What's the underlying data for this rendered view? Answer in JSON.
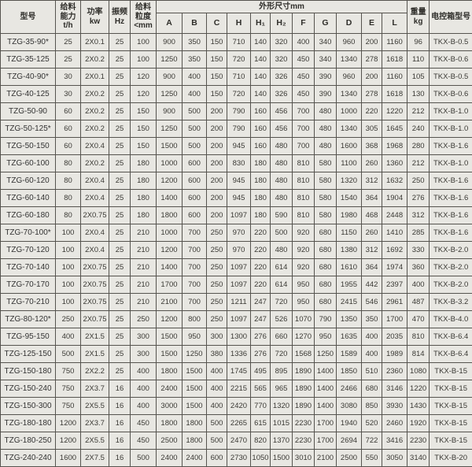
{
  "table": {
    "headers": {
      "model": "型号",
      "capacity": "给料\n能力\nt/h",
      "power": "功率\nkw",
      "frequency": "振频\nHz",
      "granularity": "给料\n粒度\n<mm",
      "dimensions_group": "外形尺寸mm",
      "weight": "重量\nkg",
      "control_box": "电控箱型号"
    },
    "dim_cols": [
      "A",
      "B",
      "C",
      "H",
      "H₁",
      "H₂",
      "F",
      "G",
      "D",
      "E",
      "L"
    ],
    "rows": [
      [
        "TZG-35-90*",
        "25",
        "2X0.1",
        "25",
        "100",
        "900",
        "350",
        "150",
        "710",
        "140",
        "320",
        "400",
        "340",
        "960",
        "200",
        "1160",
        "96",
        "TKX-B-0.5"
      ],
      [
        "TZG-35-125",
        "25",
        "2X0.2",
        "25",
        "100",
        "1250",
        "350",
        "150",
        "720",
        "140",
        "320",
        "450",
        "340",
        "1340",
        "278",
        "1618",
        "110",
        "TKX-B-0.6"
      ],
      [
        "TZG-40-90*",
        "30",
        "2X0.1",
        "25",
        "120",
        "900",
        "400",
        "150",
        "710",
        "140",
        "326",
        "450",
        "390",
        "960",
        "200",
        "1160",
        "105",
        "TKX-B-0.5"
      ],
      [
        "TZG-40-125",
        "30",
        "2X0.2",
        "25",
        "120",
        "1250",
        "400",
        "150",
        "720",
        "140",
        "326",
        "450",
        "390",
        "1340",
        "278",
        "1618",
        "130",
        "TKX-B-0.6"
      ],
      [
        "TZG-50-90",
        "60",
        "2X0.2",
        "25",
        "150",
        "900",
        "500",
        "200",
        "790",
        "160",
        "456",
        "700",
        "480",
        "1000",
        "220",
        "1220",
        "212",
        "TKX-B-1.0"
      ],
      [
        "TZG-50-125*",
        "60",
        "2X0.2",
        "25",
        "150",
        "1250",
        "500",
        "200",
        "790",
        "160",
        "456",
        "700",
        "480",
        "1340",
        "305",
        "1645",
        "240",
        "TKX-B-1.0"
      ],
      [
        "TZG-50-150",
        "60",
        "2X0.4",
        "25",
        "150",
        "1500",
        "500",
        "200",
        "945",
        "160",
        "480",
        "700",
        "480",
        "1600",
        "368",
        "1968",
        "280",
        "TKX-B-1.6"
      ],
      [
        "TZG-60-100",
        "80",
        "2X0.2",
        "25",
        "180",
        "1000",
        "600",
        "200",
        "830",
        "180",
        "480",
        "810",
        "580",
        "1100",
        "260",
        "1360",
        "212",
        "TKX-B-1.0"
      ],
      [
        "TZG-60-120",
        "80",
        "2X0.4",
        "25",
        "180",
        "1200",
        "600",
        "200",
        "945",
        "180",
        "480",
        "810",
        "580",
        "1320",
        "312",
        "1632",
        "250",
        "TKX-B-1.6"
      ],
      [
        "TZG-60-140",
        "80",
        "2X0.4",
        "25",
        "180",
        "1400",
        "600",
        "200",
        "945",
        "180",
        "480",
        "810",
        "580",
        "1540",
        "364",
        "1904",
        "276",
        "TKX-B-1.6"
      ],
      [
        "TZG-60-180",
        "80",
        "2X0.75",
        "25",
        "180",
        "1800",
        "600",
        "200",
        "1097",
        "180",
        "590",
        "810",
        "580",
        "1980",
        "468",
        "2448",
        "312",
        "TKX-B-1.6"
      ],
      [
        "TZG-70-100*",
        "100",
        "2X0.4",
        "25",
        "210",
        "1000",
        "700",
        "250",
        "970",
        "220",
        "500",
        "920",
        "680",
        "1150",
        "260",
        "1410",
        "285",
        "TKX-B-1.6"
      ],
      [
        "TZG-70-120",
        "100",
        "2X0.4",
        "25",
        "210",
        "1200",
        "700",
        "250",
        "970",
        "220",
        "480",
        "920",
        "680",
        "1380",
        "312",
        "1692",
        "330",
        "TKX-B-2.0"
      ],
      [
        "TZG-70-140",
        "100",
        "2X0.75",
        "25",
        "210",
        "1400",
        "700",
        "250",
        "1097",
        "220",
        "614",
        "920",
        "680",
        "1610",
        "364",
        "1974",
        "360",
        "TKX-B-2.0"
      ],
      [
        "TZG-70-170",
        "100",
        "2X0.75",
        "25",
        "210",
        "1700",
        "700",
        "250",
        "1097",
        "220",
        "614",
        "950",
        "680",
        "1955",
        "442",
        "2397",
        "400",
        "TKX-B-2.0"
      ],
      [
        "TZG-70-210",
        "100",
        "2X0.75",
        "25",
        "210",
        "2100",
        "700",
        "250",
        "1211",
        "247",
        "720",
        "950",
        "680",
        "2415",
        "546",
        "2961",
        "487",
        "TKX-B-3.2"
      ],
      [
        "TZG-80-120*",
        "250",
        "2X0.75",
        "25",
        "250",
        "1200",
        "800",
        "250",
        "1097",
        "247",
        "526",
        "1070",
        "790",
        "1350",
        "350",
        "1700",
        "470",
        "TKX-B-4.0"
      ],
      [
        "TZG-95-150",
        "400",
        "2X1.5",
        "25",
        "300",
        "1500",
        "950",
        "300",
        "1300",
        "276",
        "660",
        "1270",
        "950",
        "1635",
        "400",
        "2035",
        "810",
        "TKX-B-6.4"
      ],
      [
        "TZG-125-150",
        "500",
        "2X1.5",
        "25",
        "300",
        "1500",
        "1250",
        "380",
        "1336",
        "276",
        "720",
        "1568",
        "1250",
        "1589",
        "400",
        "1989",
        "814",
        "TKX-B-6.4"
      ],
      [
        "TZG-150-180",
        "750",
        "2X2.2",
        "25",
        "400",
        "1800",
        "1500",
        "400",
        "1745",
        "495",
        "895",
        "1890",
        "1400",
        "1850",
        "510",
        "2360",
        "1080",
        "TKX-B-15"
      ],
      [
        "TZG-150-240",
        "750",
        "2X3.7",
        "16",
        "400",
        "2400",
        "1500",
        "400",
        "2215",
        "565",
        "965",
        "1890",
        "1400",
        "2466",
        "680",
        "3146",
        "1220",
        "TKX-B-15"
      ],
      [
        "TZG-150-300",
        "750",
        "2X5.5",
        "16",
        "400",
        "3000",
        "1500",
        "400",
        "2420",
        "770",
        "1320",
        "1890",
        "1400",
        "3080",
        "850",
        "3930",
        "1430",
        "TKX-B-15"
      ],
      [
        "TZG-180-180",
        "1200",
        "2X3.7",
        "16",
        "450",
        "1800",
        "1800",
        "500",
        "2265",
        "615",
        "1015",
        "2230",
        "1700",
        "1940",
        "520",
        "2460",
        "1920",
        "TKX-B-15"
      ],
      [
        "TZG-180-250",
        "1200",
        "2X5.5",
        "16",
        "450",
        "2500",
        "1800",
        "500",
        "2470",
        "820",
        "1370",
        "2230",
        "1700",
        "2694",
        "722",
        "3416",
        "2230",
        "TKX-B-15"
      ],
      [
        "TZG-240-240",
        "1600",
        "2X7.5",
        "16",
        "500",
        "2400",
        "2400",
        "600",
        "2730",
        "1050",
        "1500",
        "3010",
        "2100",
        "2500",
        "550",
        "3050",
        "3140",
        "TKX-B-20"
      ]
    ]
  }
}
